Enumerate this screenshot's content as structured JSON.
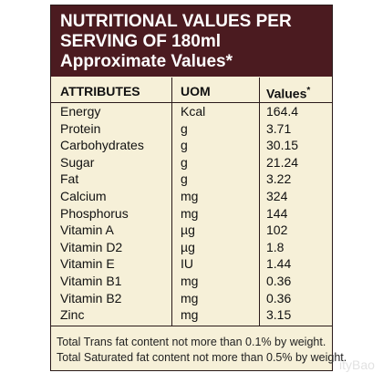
{
  "header": {
    "lines": [
      "NUTRITIONAL VALUES PER",
      "SERVING OF 180ml",
      "Approximate Values*"
    ]
  },
  "table": {
    "columns": [
      "ATTRIBUTES",
      "UOM",
      {
        "text": "Values",
        "mark": "*"
      }
    ],
    "rows": [
      [
        "Energy",
        "Kcal",
        "164.4"
      ],
      [
        "Protein",
        "g",
        "3.71"
      ],
      [
        "Carbohydrates",
        "g",
        "30.15"
      ],
      [
        "Sugar",
        "g",
        "21.24"
      ],
      [
        "Fat",
        "g",
        "3.22"
      ],
      [
        "Calcium",
        "mg",
        "324"
      ],
      [
        "Phosphorus",
        "mg",
        "144"
      ],
      [
        "Vitamin A",
        "µg",
        "102"
      ],
      [
        "Vitamin D2",
        "µg",
        "1.8"
      ],
      [
        "Vitamin E",
        "IU",
        "1.44"
      ],
      [
        "Vitamin B1",
        "mg",
        "0.36"
      ],
      [
        "Vitamin B2",
        "mg",
        "0.36"
      ],
      [
        "Zinc",
        "mg",
        "3.15"
      ]
    ]
  },
  "footer": {
    "lines": [
      "Total Trans fat content not more than 0.1% by weight.",
      "Total Saturated fat content not more than 0.5% by weight."
    ]
  },
  "watermark": "ityBao"
}
